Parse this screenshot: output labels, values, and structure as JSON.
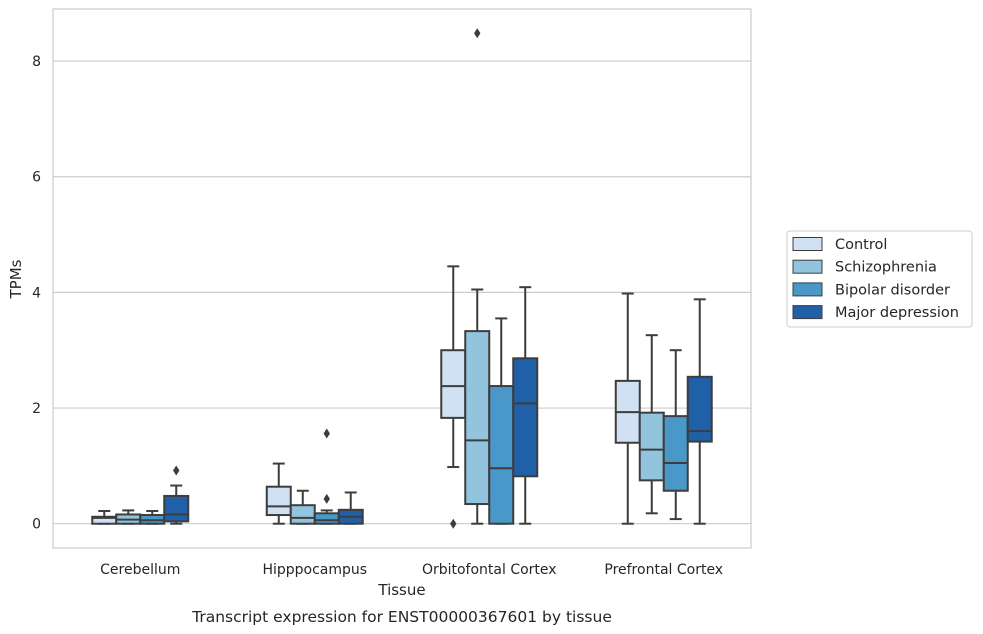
{
  "chart_data": {
    "type": "box",
    "caption": "Transcript expression for ENST00000367601 by tissue",
    "xlabel": "Tissue",
    "ylabel": "TPMs",
    "ylim": [
      -0.42,
      8.9
    ],
    "yticks": [
      0,
      2,
      4,
      6,
      8
    ],
    "grid": true,
    "legend_position": "right",
    "categories": [
      "Cerebellum",
      "Hipppocampus",
      "Orbitofontal Cortex",
      "Prefrontal Cortex"
    ],
    "series": [
      {
        "name": "Control",
        "color": "#cfe1f2",
        "boxes": [
          {
            "whislo": 0.0,
            "q1": 0.0,
            "med": 0.1,
            "q3": 0.12,
            "whishi": 0.22,
            "fliers": []
          },
          {
            "whislo": 0.0,
            "q1": 0.15,
            "med": 0.3,
            "q3": 0.64,
            "whishi": 1.04,
            "fliers": []
          },
          {
            "whislo": 0.98,
            "q1": 1.83,
            "med": 2.38,
            "q3": 3.0,
            "whishi": 4.45,
            "fliers": [
              0.0
            ]
          },
          {
            "whislo": 0.0,
            "q1": 1.4,
            "med": 1.93,
            "q3": 2.47,
            "whishi": 3.98,
            "fliers": []
          }
        ]
      },
      {
        "name": "Schizophrenia",
        "color": "#93c4de",
        "boxes": [
          {
            "whislo": 0.0,
            "q1": 0.0,
            "med": 0.07,
            "q3": 0.16,
            "whishi": 0.23,
            "fliers": []
          },
          {
            "whislo": 0.0,
            "q1": 0.0,
            "med": 0.1,
            "q3": 0.32,
            "whishi": 0.57,
            "fliers": []
          },
          {
            "whislo": 0.0,
            "q1": 0.34,
            "med": 1.44,
            "q3": 3.33,
            "whishi": 4.05,
            "fliers": [
              8.48
            ]
          },
          {
            "whislo": 0.18,
            "q1": 0.75,
            "med": 1.28,
            "q3": 1.92,
            "whishi": 3.26,
            "fliers": []
          }
        ]
      },
      {
        "name": "Bipolar disorder",
        "color": "#4a98c9",
        "boxes": [
          {
            "whislo": 0.0,
            "q1": 0.0,
            "med": 0.06,
            "q3": 0.15,
            "whishi": 0.22,
            "fliers": []
          },
          {
            "whislo": 0.0,
            "q1": 0.0,
            "med": 0.06,
            "q3": 0.18,
            "whishi": 0.23,
            "fliers": [
              0.43,
              1.56
            ]
          },
          {
            "whislo": 0.0,
            "q1": 0.0,
            "med": 0.96,
            "q3": 2.38,
            "whishi": 3.55,
            "fliers": []
          },
          {
            "whislo": 0.08,
            "q1": 0.57,
            "med": 1.05,
            "q3": 1.86,
            "whishi": 3.0,
            "fliers": []
          }
        ]
      },
      {
        "name": "Major depression",
        "color": "#2060a8",
        "boxes": [
          {
            "whislo": 0.0,
            "q1": 0.04,
            "med": 0.16,
            "q3": 0.48,
            "whishi": 0.66,
            "fliers": [
              0.92
            ]
          },
          {
            "whislo": 0.0,
            "q1": 0.0,
            "med": 0.12,
            "q3": 0.24,
            "whishi": 0.54,
            "fliers": []
          },
          {
            "whislo": 0.0,
            "q1": 0.82,
            "med": 2.08,
            "q3": 2.86,
            "whishi": 4.09,
            "fliers": []
          },
          {
            "whislo": 0.0,
            "q1": 1.42,
            "med": 1.6,
            "q3": 2.54,
            "whishi": 3.88,
            "fliers": []
          }
        ]
      }
    ]
  }
}
